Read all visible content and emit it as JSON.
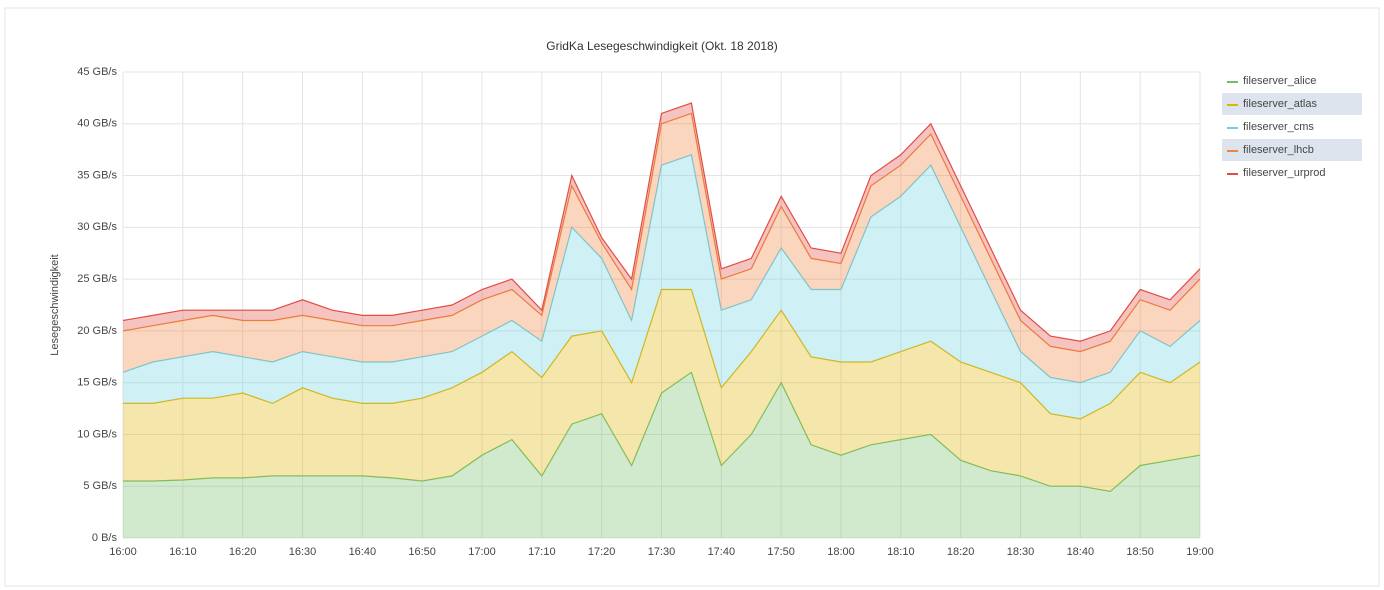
{
  "chart_data": {
    "type": "stacked_area",
    "title": "GridKa Lesegeschwindigkeit (Okt. 18 2018)",
    "y_label": "Lesegeschwindigkeit",
    "x": [
      "16:00",
      null,
      "16:10",
      null,
      "16:20",
      null,
      "16:30",
      null,
      "16:40",
      null,
      "16:50",
      null,
      "17:00",
      null,
      "17:10",
      null,
      "17:20",
      null,
      "17:30",
      null,
      "17:40",
      null,
      "17:50",
      null,
      "18:00",
      null,
      "18:10",
      null,
      "18:20",
      null,
      "18:30",
      null,
      "18:40",
      null,
      "18:50",
      null,
      "19:00"
    ],
    "ylim": [
      0,
      45
    ],
    "yticks": [
      {
        "value": 0,
        "label": "0 B/s"
      },
      {
        "value": 5,
        "label": "5 GB/s"
      },
      {
        "value": 10,
        "label": "10 GB/s"
      },
      {
        "value": 15,
        "label": "15 GB/s"
      },
      {
        "value": 20,
        "label": "20 GB/s"
      },
      {
        "value": 25,
        "label": "25 GB/s"
      },
      {
        "value": 30,
        "label": "30 GB/s"
      },
      {
        "value": 35,
        "label": "35 GB/s"
      },
      {
        "value": 40,
        "label": "40 GB/s"
      },
      {
        "value": 45,
        "label": "45 GB/s"
      }
    ],
    "grid": true,
    "legend": "right",
    "series": [
      {
        "name": "fileserver_alice",
        "color": "#73bf69",
        "values": [
          5.5,
          5.5,
          5.6,
          5.8,
          5.8,
          6,
          6,
          6,
          6,
          5.8,
          5.5,
          6,
          8,
          9.5,
          6,
          11,
          12,
          7,
          14,
          16,
          7,
          10,
          15,
          9,
          8,
          9,
          9.5,
          10,
          7.5,
          6.5,
          6,
          5,
          5,
          4.5,
          7,
          7.5,
          8
        ]
      },
      {
        "name": "fileserver_atlas",
        "color": "#e0b400",
        "values": [
          7.5,
          7.5,
          7.9,
          7.7,
          8.2,
          7,
          8.5,
          7.5,
          7,
          7.2,
          8,
          8.5,
          8,
          8.5,
          9.5,
          8.5,
          8,
          8,
          10,
          8,
          7.5,
          8,
          7,
          8.5,
          9,
          8,
          8.5,
          9,
          9.5,
          9.5,
          9,
          7,
          6.5,
          8.5,
          9,
          7.5,
          9
        ]
      },
      {
        "name": "fileserver_cms",
        "color": "#6ed0e0",
        "values": [
          3,
          4,
          4,
          4.5,
          3.5,
          4,
          3.5,
          4,
          4,
          4,
          4,
          3.5,
          3.5,
          3,
          3.5,
          10.5,
          7,
          6,
          12,
          13,
          7.5,
          5,
          6,
          6.5,
          7,
          14,
          15,
          17,
          13,
          8,
          3,
          3.5,
          3.5,
          3,
          4,
          3.5,
          4
        ]
      },
      {
        "name": "fileserver_lhcb",
        "color": "#ef843c",
        "values": [
          4,
          3.5,
          3.5,
          3.5,
          3.5,
          4,
          3.5,
          3.5,
          3.5,
          3.5,
          3.5,
          3.5,
          3.5,
          3,
          2.5,
          4,
          1.5,
          3,
          4,
          4,
          3,
          3,
          4,
          3,
          2.5,
          3,
          3,
          3,
          3,
          3,
          3,
          3,
          3,
          3,
          3,
          3.5,
          4
        ]
      },
      {
        "name": "fileserver_urprod",
        "color": "#e24d42",
        "values": [
          1,
          1,
          1,
          0.5,
          1,
          1,
          1.5,
          1,
          1,
          1,
          1,
          1,
          1,
          1,
          0.5,
          1,
          0.5,
          1,
          1,
          1,
          1,
          1,
          1,
          1,
          1,
          1,
          1,
          1,
          1,
          1,
          1,
          1,
          1,
          1,
          1,
          1,
          1
        ]
      }
    ]
  }
}
